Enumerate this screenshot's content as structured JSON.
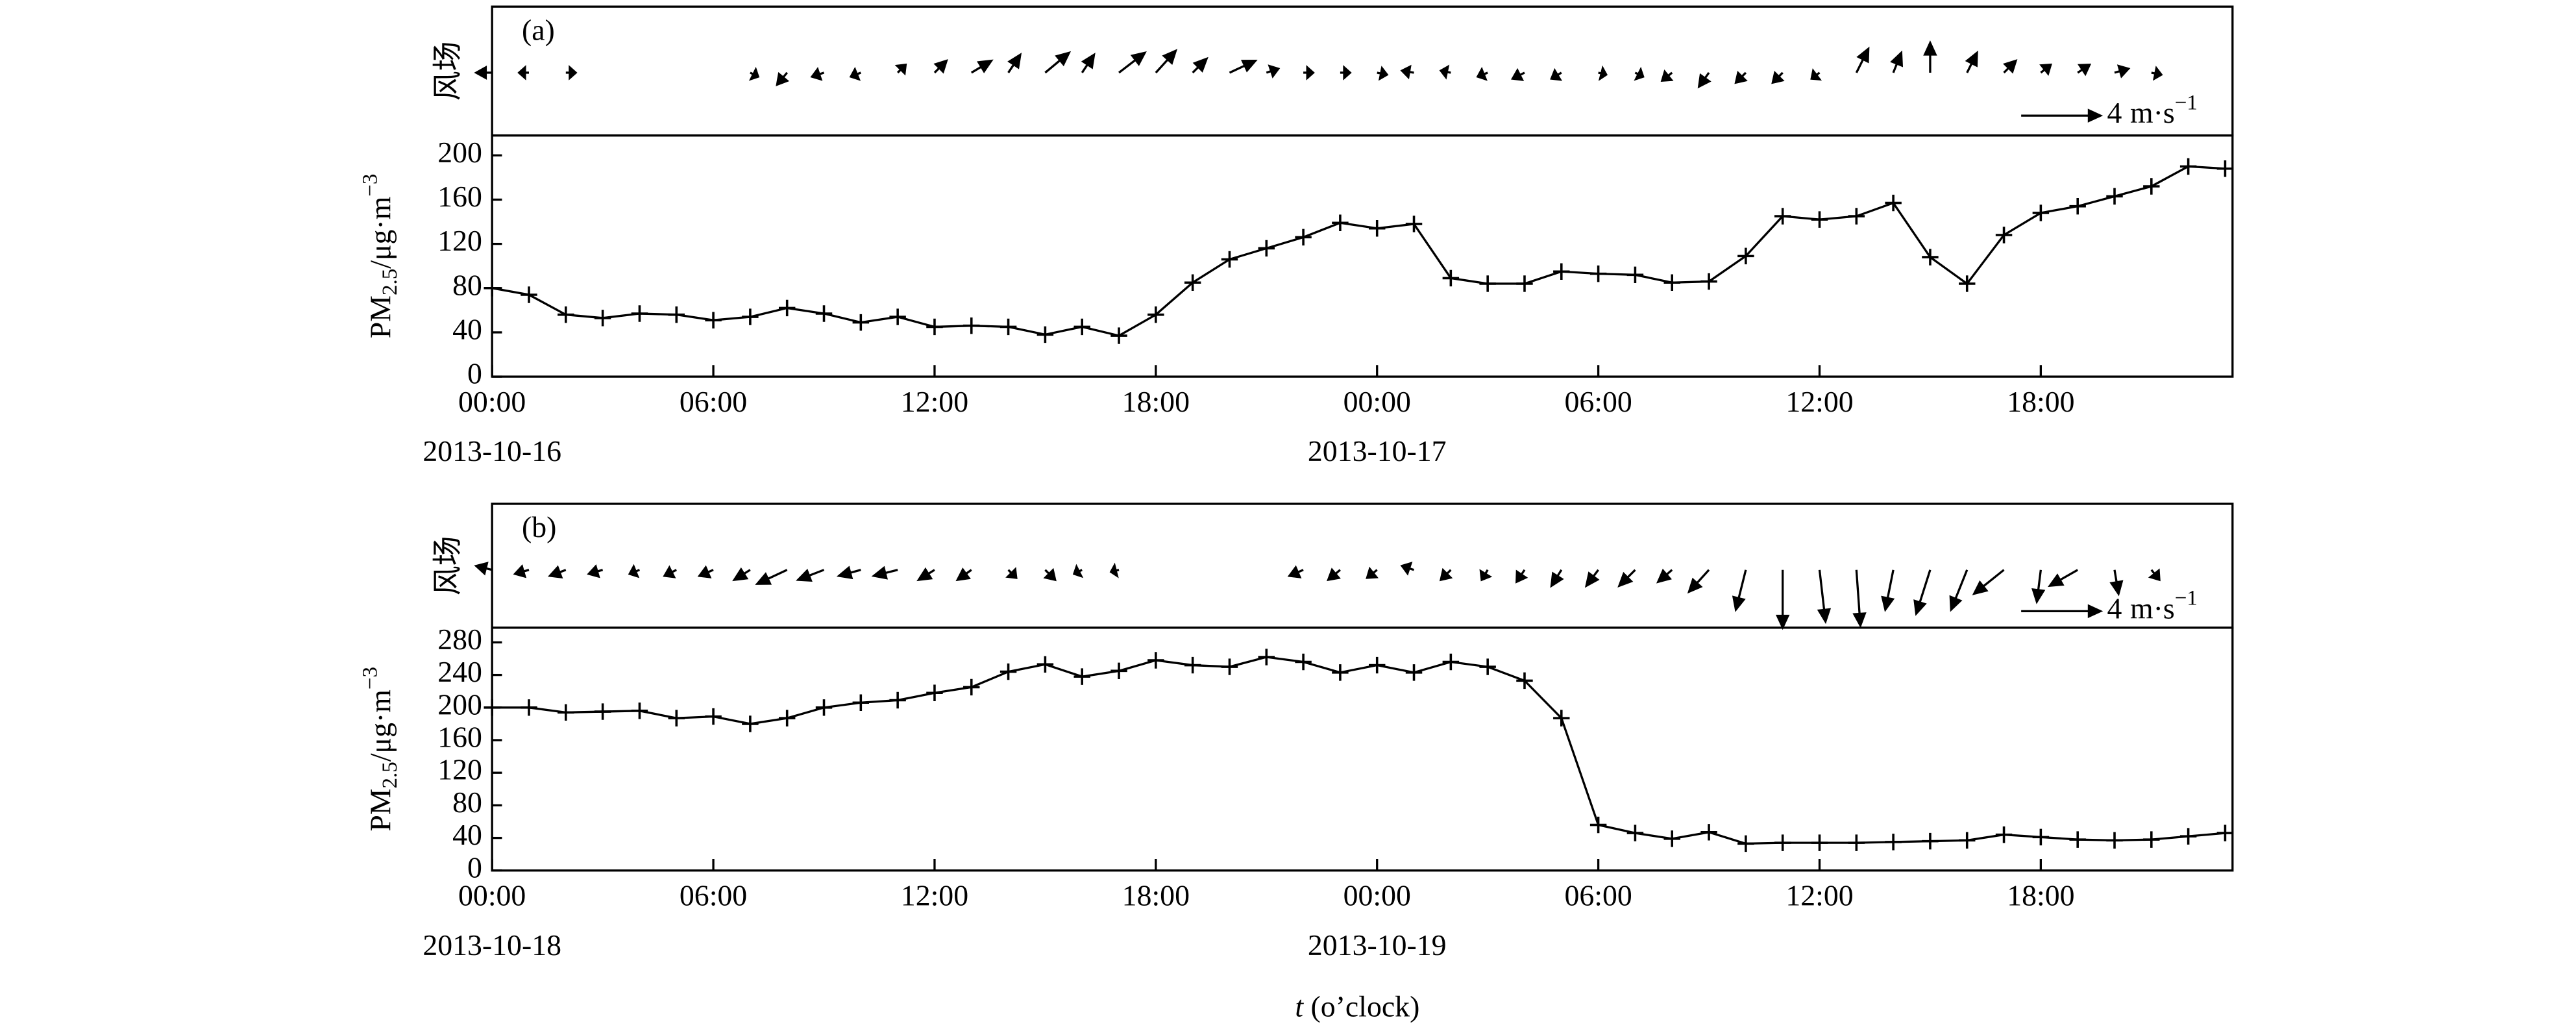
{
  "x_label": {
    "var": "t",
    "rest": " (o’clock)"
  },
  "chart_data": [
    {
      "type": "line",
      "panel_label": "(a)",
      "wind_label": "风场",
      "y_label": {
        "main": "PM",
        "sub": "2.5",
        "unit": "/μg·m",
        "sup": "−3"
      },
      "wind_reference": {
        "value": 4,
        "unit": "m·s",
        "sup": "−1"
      },
      "x": [
        0,
        1,
        2,
        3,
        4,
        5,
        6,
        7,
        8,
        9,
        10,
        11,
        12,
        13,
        14,
        15,
        16,
        17,
        18,
        19,
        20,
        21,
        22,
        23,
        24,
        25,
        26,
        27,
        28,
        29,
        30,
        31,
        32,
        33,
        34,
        35,
        36,
        37,
        38,
        39,
        40,
        41,
        42,
        43,
        44,
        45,
        46,
        47
      ],
      "values": [
        80,
        74,
        56,
        53,
        57,
        56,
        51,
        54,
        62,
        57,
        49,
        54,
        45,
        46,
        45,
        38,
        45,
        37,
        56,
        85,
        106,
        116,
        126,
        139,
        134,
        138,
        89,
        84,
        84,
        95,
        93,
        92,
        85,
        86,
        109,
        145,
        142,
        145,
        157,
        108,
        84,
        128,
        148,
        154,
        163,
        172,
        190,
        188
      ],
      "wind_u": [
        -0.8,
        -0.5,
        0.5,
        null,
        null,
        null,
        null,
        0.4,
        -0.5,
        -0.6,
        -0.5,
        0.4,
        0.6,
        1.0,
        0.6,
        1.2,
        0.6,
        1.3,
        1.0,
        0.7,
        1.3,
        0.6,
        0.5,
        0.5,
        0.5,
        -0.6,
        -0.5,
        -0.5,
        -0.6,
        -0.5,
        0.4,
        0.4,
        -0.5,
        -0.5,
        -0.5,
        -0.5,
        -0.4,
        0.6,
        0.4,
        0,
        0.5,
        0.6,
        0.5,
        0.6,
        0.7,
        0.5,
        null,
        null
      ],
      "wind_v": [
        0,
        0,
        0,
        null,
        null,
        null,
        null,
        -0.2,
        -0.6,
        -0.2,
        -0.2,
        0.4,
        0.6,
        0.6,
        0.9,
        1.0,
        0.9,
        1.0,
        1.1,
        0.7,
        0.6,
        0.2,
        0,
        0,
        -0.1,
        0.1,
        0.1,
        -0.2,
        -0.3,
        -0.3,
        -0.1,
        -0.2,
        -0.4,
        -0.7,
        -0.5,
        -0.5,
        -0.3,
        1.2,
        1.0,
        1.5,
        1.0,
        0.6,
        0.4,
        0.4,
        0.2,
        -0.1,
        null,
        null
      ],
      "xlim": [
        0,
        47.2
      ],
      "ylim": [
        0,
        218
      ],
      "xticks": [
        {
          "value": 0,
          "label": "00:00"
        },
        {
          "value": 6,
          "label": "06:00"
        },
        {
          "value": 12,
          "label": "12:00"
        },
        {
          "value": 18,
          "label": "18:00"
        },
        {
          "value": 24,
          "label": "00:00"
        },
        {
          "value": 30,
          "label": "06:00"
        },
        {
          "value": 36,
          "label": "12:00"
        },
        {
          "value": 42,
          "label": "18:00"
        }
      ],
      "date_labels": [
        {
          "value": 0,
          "label": "2013-10-16"
        },
        {
          "value": 24,
          "label": "2013-10-17"
        }
      ],
      "yticks": [
        0,
        40,
        80,
        120,
        160,
        200
      ]
    },
    {
      "type": "line",
      "panel_label": "(b)",
      "wind_label": "风场",
      "y_label": {
        "main": "PM",
        "sub": "2.5",
        "unit": "/μg·m",
        "sup": "−3"
      },
      "wind_reference": {
        "value": 4,
        "unit": "m·s",
        "sup": "−1"
      },
      "x": [
        0,
        1,
        2,
        3,
        4,
        5,
        6,
        7,
        8,
        9,
        10,
        11,
        12,
        13,
        14,
        15,
        16,
        17,
        18,
        19,
        20,
        21,
        22,
        23,
        24,
        25,
        26,
        27,
        28,
        29,
        30,
        31,
        32,
        33,
        34,
        35,
        36,
        37,
        38,
        39,
        40,
        41,
        42,
        43,
        44,
        45,
        46,
        47
      ],
      "values": [
        200,
        200,
        194,
        195,
        196,
        187,
        189,
        180,
        187,
        200,
        206,
        209,
        218,
        225,
        244,
        253,
        238,
        245,
        258,
        252,
        250,
        262,
        256,
        243,
        252,
        243,
        256,
        250,
        233,
        187,
        56,
        46,
        39,
        47,
        33,
        34,
        34,
        34,
        35,
        36,
        37,
        44,
        41,
        38,
        37,
        38,
        42,
        46
      ],
      "wind_u": [
        -0.8,
        -0.7,
        -0.8,
        -0.7,
        -0.5,
        -0.6,
        -0.7,
        -0.8,
        -1.5,
        -1.3,
        -1.1,
        -1.2,
        -0.8,
        -0.7,
        0.4,
        0.5,
        -0.4,
        -0.4,
        null,
        null,
        null,
        null,
        -0.7,
        -0.6,
        -0.5,
        -0.6,
        -0.5,
        -0.3,
        -0.4,
        -0.5,
        -0.6,
        -0.8,
        -0.7,
        -1.0,
        -0.5,
        0,
        0.3,
        0.2,
        -0.4,
        -0.7,
        -0.8,
        -1.5,
        -0.2,
        -1.4,
        0.2,
        0.4,
        null,
        null
      ],
      "wind_v": [
        0.2,
        -0.2,
        -0.3,
        -0.2,
        -0.2,
        -0.3,
        -0.3,
        -0.5,
        -0.7,
        -0.5,
        -0.3,
        -0.3,
        -0.5,
        -0.5,
        -0.4,
        -0.5,
        -0.2,
        -0.1,
        null,
        null,
        null,
        null,
        -0.3,
        -0.5,
        -0.4,
        0.2,
        -0.5,
        -0.5,
        -0.6,
        -0.8,
        -0.8,
        -0.8,
        -0.6,
        -1.1,
        -2.0,
        -2.9,
        -2.6,
        -2.8,
        -2.0,
        -2.2,
        -2.0,
        -1.2,
        -1.6,
        -0.8,
        -1.2,
        -0.5,
        null,
        null
      ],
      "xlim": [
        0,
        47.2
      ],
      "ylim": [
        0,
        298
      ],
      "xticks": [
        {
          "value": 0,
          "label": "00:00"
        },
        {
          "value": 6,
          "label": "06:00"
        },
        {
          "value": 12,
          "label": "12:00"
        },
        {
          "value": 18,
          "label": "18:00"
        },
        {
          "value": 24,
          "label": "00:00"
        },
        {
          "value": 30,
          "label": "06:00"
        },
        {
          "value": 36,
          "label": "12:00"
        },
        {
          "value": 42,
          "label": "18:00"
        }
      ],
      "date_labels": [
        {
          "value": 0,
          "label": "2013-10-18"
        },
        {
          "value": 24,
          "label": "2013-10-19"
        }
      ],
      "yticks": [
        0,
        40,
        80,
        120,
        160,
        200,
        240,
        280
      ]
    }
  ]
}
